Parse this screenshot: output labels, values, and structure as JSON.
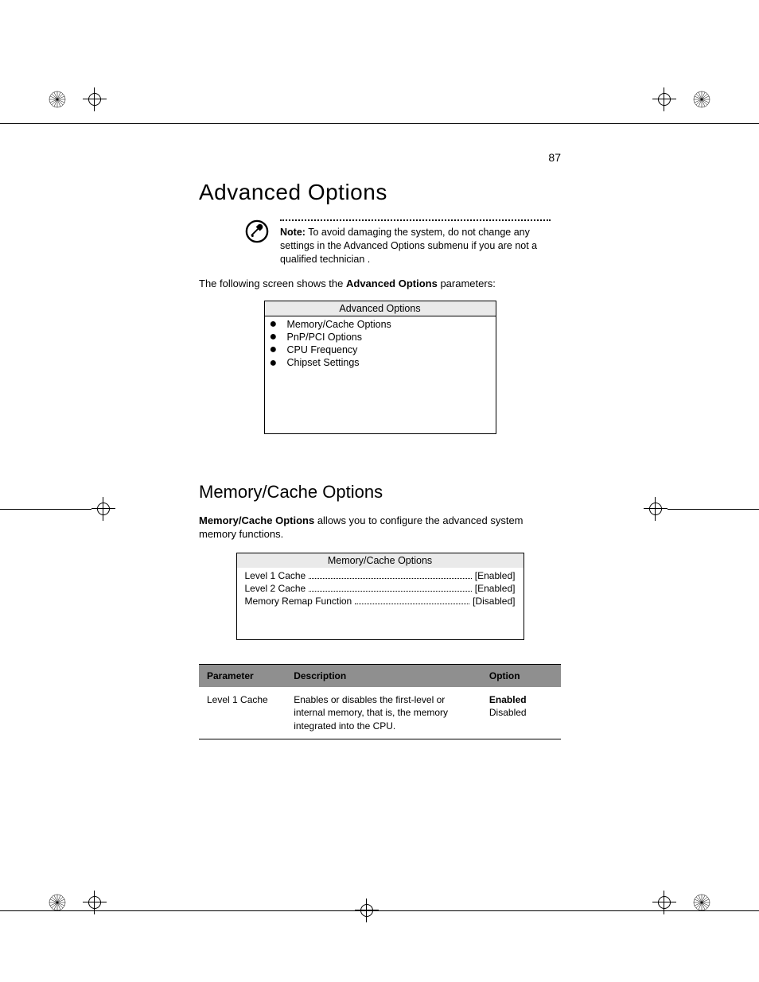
{
  "page_number": "87",
  "title": "Advanced Options",
  "note": {
    "label": "Note:",
    "text": " To avoid damaging the system, do not change any settings in the Advanced Options submenu if you are not a qualified technician ."
  },
  "intro_prefix": "The following screen shows the ",
  "intro_bold": "Advanced Options",
  "intro_suffix": " parameters:",
  "advanced_screen": {
    "header": "Advanced Options",
    "items": [
      "Memory/Cache Options",
      "PnP/PCI Options",
      "CPU Frequency",
      "Chipset Settings"
    ]
  },
  "subtitle": "Memory/Cache Options",
  "sub_intro_bold": "Memory/Cache Options",
  "sub_intro_rest": " allows you to configure the advanced system memory functions.",
  "memcache_screen": {
    "header": "Memory/Cache Options",
    "rows": [
      {
        "label": "Level 1 Cache",
        "value": "[Enabled]"
      },
      {
        "label": "Level 2 Cache",
        "value": "[Enabled]"
      },
      {
        "label": "Memory Remap Function",
        "value": "[Disabled]"
      }
    ]
  },
  "table": {
    "headers": {
      "param": "Parameter",
      "desc": "Description",
      "option": "Option"
    },
    "rows": [
      {
        "param": "Level 1 Cache",
        "desc": "Enables or disables the first-level or internal memory, that is, the memory integrated into the CPU.",
        "option_bold": "Enabled",
        "option_rest": "Disabled"
      }
    ],
    "header_bg": "#8f8f8f",
    "header_text": "#000000"
  },
  "colors": {
    "page_bg": "#ffffff",
    "screen_header_bg": "#eaeaea",
    "border": "#000000",
    "text": "#000000"
  }
}
